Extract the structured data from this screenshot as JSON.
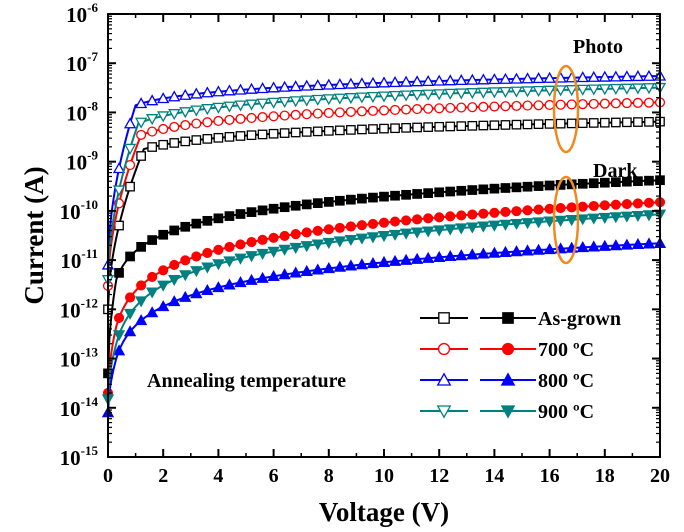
{
  "chart_data": {
    "type": "line",
    "xlabel": "Voltage (V)",
    "ylabel": "Current (A)",
    "xlim": [
      0,
      20
    ],
    "yscale": "log",
    "ylim_exp": [
      -15,
      -6
    ],
    "x_ticks": [
      "0",
      "2",
      "4",
      "6",
      "8",
      "10",
      "12",
      "14",
      "16",
      "18",
      "20"
    ],
    "y_ticks": [
      {
        "base": "10",
        "exp": "-15"
      },
      {
        "base": "10",
        "exp": "-14"
      },
      {
        "base": "10",
        "exp": "-13"
      },
      {
        "base": "10",
        "exp": "-12"
      },
      {
        "base": "10",
        "exp": "-11"
      },
      {
        "base": "10",
        "exp": "-10"
      },
      {
        "base": "10",
        "exp": "-9"
      },
      {
        "base": "10",
        "exp": "-8"
      },
      {
        "base": "10",
        "exp": "-7"
      },
      {
        "base": "10",
        "exp": "-6"
      }
    ],
    "grid": false,
    "legend_title": "Annealing temperature",
    "legend_position": "bottom-right",
    "annotations": {
      "photo": "Photo",
      "dark": "Dark"
    },
    "annotation_color": "#f08a1c",
    "series": [
      {
        "name": "As-grown",
        "group": "photo",
        "color": "#000000",
        "marker": "square-open",
        "voltage_kink": 1.3,
        "i_at_0v": 1e-12,
        "i_at_kink": 1.8e-09,
        "i_at_20v": 6.5e-09
      },
      {
        "name": "700 ºC",
        "group": "photo",
        "color": "#ff0000",
        "marker": "circle-open",
        "voltage_kink": 1.2,
        "i_at_0v": 3e-12,
        "i_at_kink": 3.5e-09,
        "i_at_20v": 1.6e-08
      },
      {
        "name": "800 ºC",
        "group": "photo",
        "color": "#0000ff",
        "marker": "triangle-up-open",
        "voltage_kink": 1.0,
        "i_at_0v": 8e-12,
        "i_at_kink": 1.4e-08,
        "i_at_20v": 5.5e-08
      },
      {
        "name": "900 ºC",
        "group": "photo",
        "color": "#008080",
        "marker": "triangle-down-open",
        "voltage_kink": 1.1,
        "i_at_0v": 4e-12,
        "i_at_kink": 6e-09,
        "i_at_20v": 3.2e-08
      },
      {
        "name": "As-grown",
        "group": "dark",
        "color": "#000000",
        "marker": "square-filled",
        "voltage_kink": 0.3,
        "i_at_0v": 5e-14,
        "i_at_kink": 4e-12,
        "i_at_20v": 4.2e-10
      },
      {
        "name": "700 ºC",
        "group": "dark",
        "color": "#ff0000",
        "marker": "circle-filled",
        "voltage_kink": 0.3,
        "i_at_0v": 2e-14,
        "i_at_kink": 4.5e-13,
        "i_at_20v": 1.5e-10
      },
      {
        "name": "800 ºC",
        "group": "dark",
        "color": "#0000ff",
        "marker": "triangle-up-filled",
        "voltage_kink": 0.3,
        "i_at_0v": 8e-15,
        "i_at_kink": 1e-13,
        "i_at_20v": 2.2e-11
      },
      {
        "name": "900 ºC",
        "group": "dark",
        "color": "#008080",
        "marker": "triangle-down-filled",
        "voltage_kink": 0.3,
        "i_at_0v": 1.5e-14,
        "i_at_kink": 2e-13,
        "i_at_20v": 8.5e-11
      }
    ],
    "legend_entries": [
      {
        "label": "As-grown",
        "color": "#000000",
        "open_marker": "square-open",
        "filled_marker": "square-filled"
      },
      {
        "label": "700 ºC",
        "color": "#ff0000",
        "open_marker": "circle-open",
        "filled_marker": "circle-filled"
      },
      {
        "label": "800 ºC",
        "color": "#0000ff",
        "open_marker": "triangle-up-open",
        "filled_marker": "triangle-up-filled"
      },
      {
        "label": "900 ºC",
        "color": "#008080",
        "open_marker": "triangle-down-open",
        "filled_marker": "triangle-down-filled"
      }
    ]
  }
}
